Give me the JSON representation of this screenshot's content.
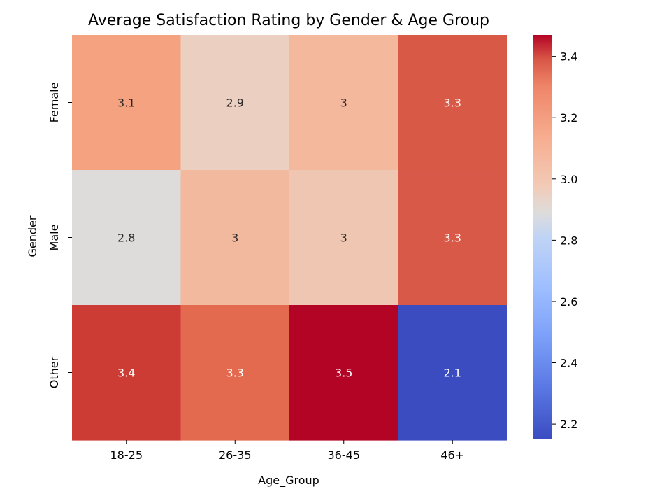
{
  "chart_data": {
    "type": "heatmap",
    "title": "Average Satisfaction Rating by Gender & Age Group",
    "xlabel": "Age_Group",
    "ylabel": "Gender",
    "x_categories": [
      "18-25",
      "26-35",
      "36-45",
      "46+"
    ],
    "y_categories": [
      "Female",
      "Male",
      "Other"
    ],
    "values": [
      [
        3.1,
        2.9,
        3.0,
        3.3
      ],
      [
        2.8,
        3.0,
        3.0,
        3.3
      ],
      [
        3.4,
        3.3,
        3.5,
        2.1
      ]
    ],
    "cell_labels": [
      [
        "3.1",
        "2.9",
        "3",
        "3.3"
      ],
      [
        "2.8",
        "3",
        "3",
        "3.3"
      ],
      [
        "3.4",
        "3.3",
        "3.5",
        "2.1"
      ]
    ],
    "colors": [
      [
        "#f5a281",
        "#ebd0c2",
        "#f4b89d",
        "#d95947"
      ],
      [
        "#dedcdb",
        "#f3b99e",
        "#efc6b1",
        "#d95948"
      ],
      [
        "#cc3b34",
        "#e3694f",
        "#b40426",
        "#3b4cc0"
      ]
    ],
    "colormap": "coolwarm",
    "colorbar": {
      "range": [
        2.15,
        3.47
      ],
      "ticks": [
        2.2,
        2.4,
        2.6,
        2.8,
        3.0,
        3.2,
        3.4
      ],
      "tick_labels": [
        "2.2",
        "2.4",
        "2.6",
        "2.8",
        "3.0",
        "3.2",
        "3.4"
      ]
    }
  }
}
